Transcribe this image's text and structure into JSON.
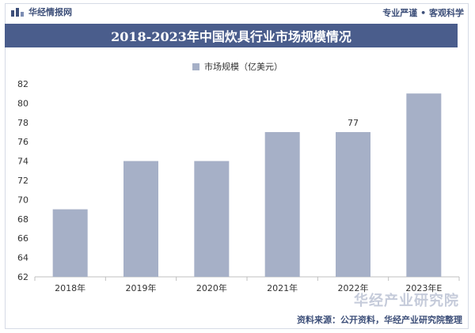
{
  "header": {
    "brand": "华经情报网",
    "brand_icon": "bar-logo-icon",
    "tagline": "专业严谨 • 客观科学"
  },
  "watermark": "华经产业研究院",
  "footer": {
    "source": "资料来源：公开资料，华经产业研究院整理"
  },
  "colors": {
    "title_bg": "#4a5d8c",
    "bar": "#a6b0c7",
    "brand_text": "#3d4f79"
  },
  "chart_data": {
    "type": "bar",
    "title": "2018-2023年中国炊具行业市场规模情况",
    "legend": [
      "市场规模（亿美元）"
    ],
    "legend_position": "top-center",
    "categories": [
      "2018年",
      "2019年",
      "2020年",
      "2021年",
      "2022年",
      "2023年E"
    ],
    "series": [
      {
        "name": "市场规模（亿美元）",
        "values": [
          69,
          74,
          74,
          77,
          77,
          81
        ]
      }
    ],
    "data_labels": [
      {
        "category": "2022年",
        "text": "77"
      }
    ],
    "ylim": [
      62,
      82
    ],
    "yticks": [
      62,
      64,
      66,
      68,
      70,
      72,
      74,
      76,
      78,
      80,
      82
    ],
    "grid": false
  }
}
